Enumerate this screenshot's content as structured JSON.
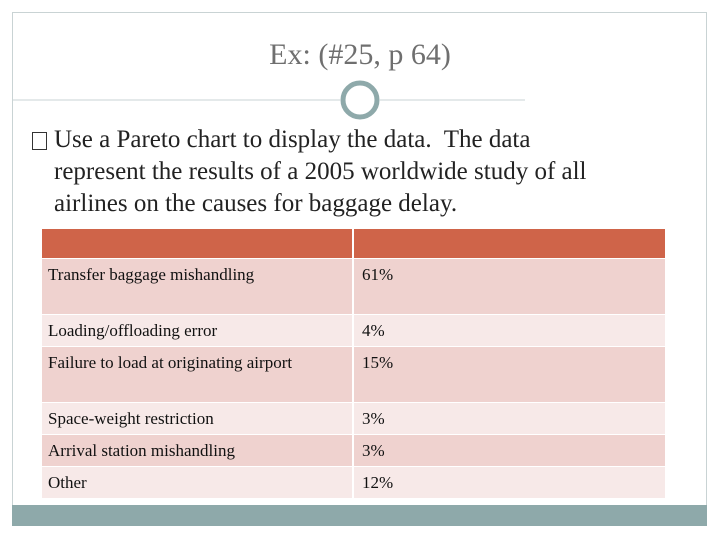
{
  "header": {
    "title": "Ex: (#25, p 64)"
  },
  "bullet": {
    "lines": [
      "Use a Pareto chart to display the data.  The data",
      "represent the results of a 2005 worldwide study of all",
      "airlines on the causes for baggage delay."
    ]
  },
  "table": {
    "rows": [
      [
        "Transfer baggage mishandling",
        "61%"
      ],
      [
        "Loading/offloading error",
        "4%"
      ],
      [
        "Failure to load at originating airport",
        "15%"
      ],
      [
        "Space-weight restriction",
        "3%"
      ],
      [
        "Arrival station mishandling",
        "3%"
      ],
      [
        "Other",
        "12%"
      ]
    ]
  }
}
